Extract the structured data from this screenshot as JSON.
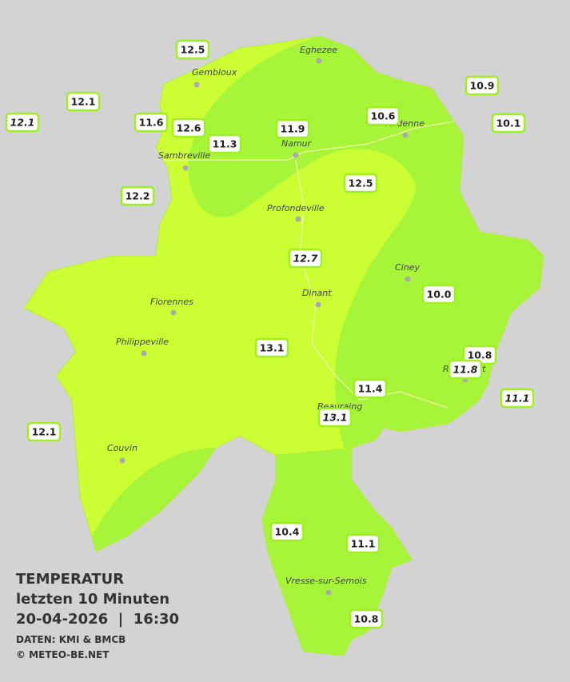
{
  "title": [
    "TEMPERATUR",
    "letzten 10 Minuten",
    "20-04-2026  |  16:30"
  ],
  "credits": [
    "DATEN: KMI & BMCB",
    "© METEO-BE.NET"
  ],
  "cities": [
    "Eghezee",
    "Gembloux",
    "Andenne",
    "Namur",
    "Sambreville",
    "Profondeville",
    "Ciney",
    "Florennes",
    "Dinant",
    "Philippeville",
    "Rochefort",
    "Beauraing",
    "Couvin",
    "Vresse-sur-Semois"
  ],
  "stations": [
    {
      "value": "12.5",
      "italic": false
    },
    {
      "value": "12.1",
      "italic": false
    },
    {
      "value": "12.1",
      "italic": true
    },
    {
      "value": "11.6",
      "italic": false
    },
    {
      "value": "12.6",
      "italic": false
    },
    {
      "value": "11.3",
      "italic": false
    },
    {
      "value": "11.9",
      "italic": false
    },
    {
      "value": "10.6",
      "italic": false
    },
    {
      "value": "10.9",
      "italic": false
    },
    {
      "value": "10.1",
      "italic": false
    },
    {
      "value": "12.2",
      "italic": false
    },
    {
      "value": "12.5",
      "italic": false
    },
    {
      "value": "12.7",
      "italic": true
    },
    {
      "value": "10.0",
      "italic": false
    },
    {
      "value": "13.1",
      "italic": false
    },
    {
      "value": "10.8",
      "italic": false
    },
    {
      "value": "11.8",
      "italic": true
    },
    {
      "value": "11.4",
      "italic": false
    },
    {
      "value": "13.1",
      "italic": true
    },
    {
      "value": "11.1",
      "italic": true
    },
    {
      "value": "12.1",
      "italic": false
    },
    {
      "value": "10.4",
      "italic": false
    },
    {
      "value": "11.1",
      "italic": false
    },
    {
      "value": "10.8",
      "italic": false
    }
  ]
}
